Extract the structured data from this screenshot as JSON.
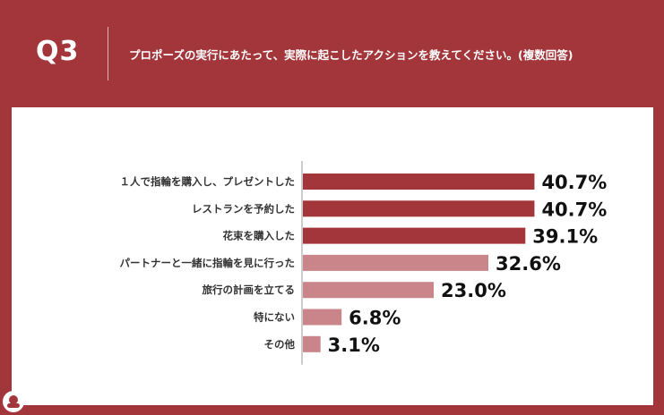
{
  "header": {
    "question_number": "Q3",
    "question_text": "プロポーズの実行にあたって、実際に起こしたアクションを教えてください。(複数回答)"
  },
  "chart_data": {
    "type": "bar",
    "orientation": "horizontal",
    "categories": [
      "１人で指輪を購入し、プレゼントした",
      "レストランを予約した",
      "花束を購入した",
      "パートナーと一緒に指輪を見に行った",
      "旅行の計画を立てる",
      "特にない",
      "その他"
    ],
    "values": [
      40.7,
      40.7,
      39.1,
      32.6,
      23.0,
      6.8,
      3.1
    ],
    "value_labels": [
      "40.7%",
      "40.7%",
      "39.1%",
      "32.6%",
      "23.0%",
      "6.8%",
      "3.1%"
    ],
    "colors": [
      "#a3363b",
      "#a3363b",
      "#a3363b",
      "#c98589",
      "#c98589",
      "#c98589",
      "#c98589"
    ],
    "unit": "%",
    "title": "",
    "xlabel": "",
    "ylabel": "",
    "grid": false,
    "legend": "none"
  },
  "logo_icon": "brand-logo-icon"
}
